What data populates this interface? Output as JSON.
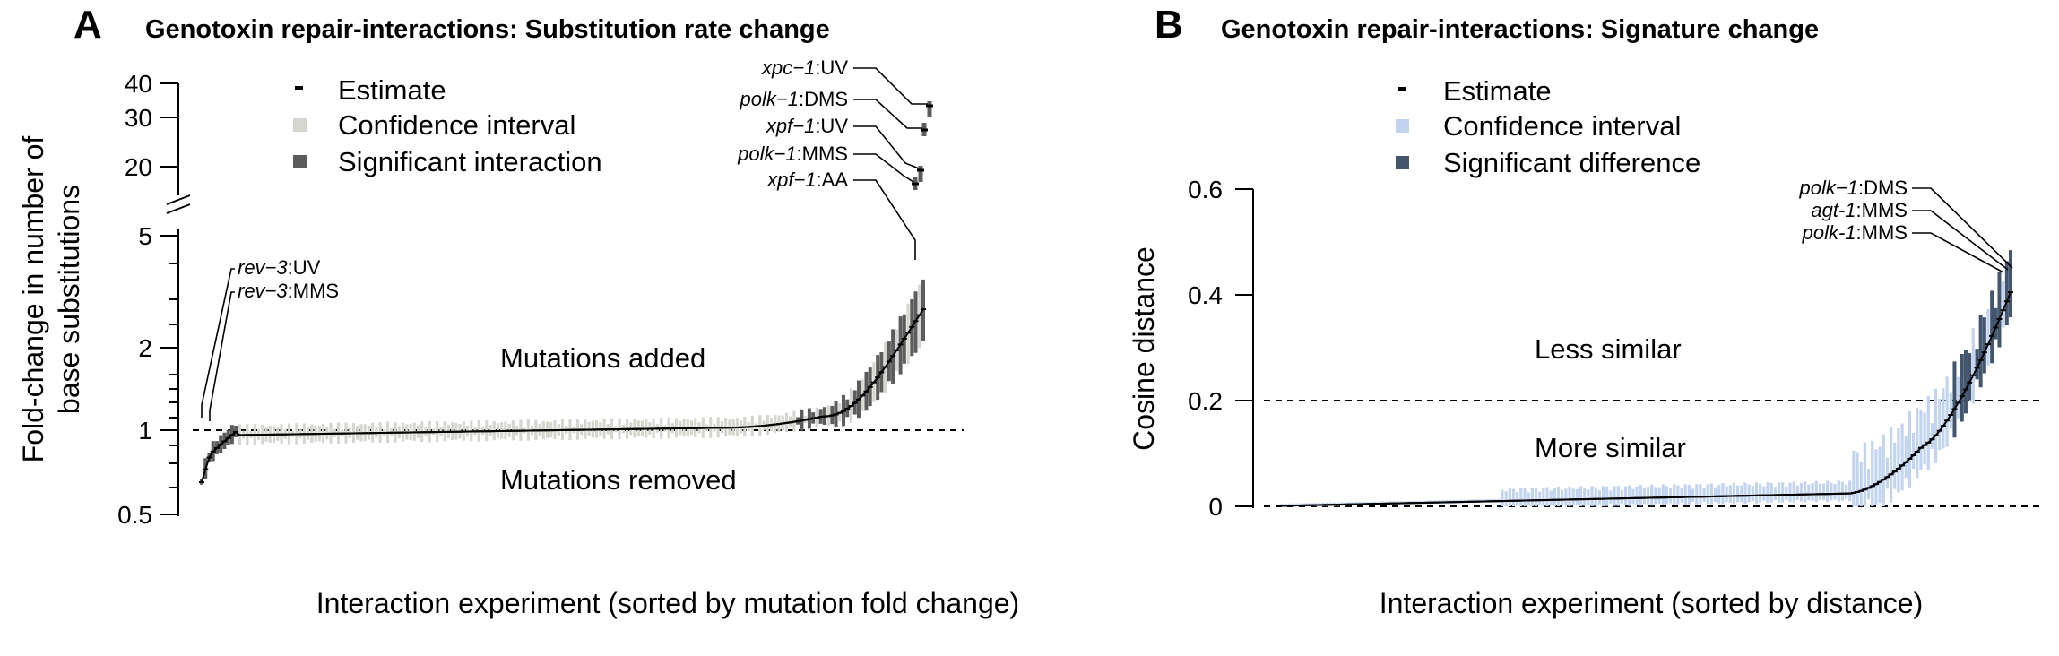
{
  "panels": {
    "a": {
      "letter": "A",
      "title": "Genotoxin repair-interactions: Substitution rate change",
      "ylabel_line1": "Fold-change in number of",
      "ylabel_line2": "base substitutions",
      "xlabel": "Interaction experiment (sorted by mutation fold change)",
      "region_above": "Mutations added",
      "region_below": "Mutations removed",
      "legend": [
        "Estimate",
        "Confidence interval",
        "Significant interaction"
      ],
      "annotations": [
        {
          "gene": "xpc−1",
          "treatment": ":UV"
        },
        {
          "gene": "polk−1",
          "treatment": ":DMS"
        },
        {
          "gene": "xpf−1",
          "treatment": ":UV"
        },
        {
          "gene": "polk−1",
          "treatment": ":MMS"
        },
        {
          "gene": "xpf−1",
          "treatment": ":AA"
        },
        {
          "gene": "rev−3",
          "treatment": ":UV"
        },
        {
          "gene": "rev−3",
          "treatment": ":MMS"
        }
      ]
    },
    "b": {
      "letter": "B",
      "title": "Genotoxin repair-interactions: Signature change",
      "ylabel": "Cosine distance",
      "xlabel": "Interaction experiment (sorted by distance)",
      "region_above": "Less similar",
      "region_below": "More similar",
      "legend": [
        "Estimate",
        "Confidence interval",
        "Significant difference"
      ],
      "annotations": [
        {
          "gene": "polk−1",
          "treatment": ":DMS"
        },
        {
          "gene": "agt-1",
          "treatment": ":MMS"
        },
        {
          "gene": "polk-1",
          "treatment": ":MMS"
        }
      ]
    }
  },
  "colors": {
    "a_ci": "#d6d6d0",
    "a_sig": "#5c5c5c",
    "b_ci": "#c2d4f0",
    "b_sig": "#44556e",
    "estimate": "#000000"
  },
  "chart_data": [
    {
      "type": "scatter",
      "panel": "A",
      "yscale": "log (broken axis)",
      "ylim_lower": [
        0.5,
        5
      ],
      "ylim_upper": [
        20,
        40
      ],
      "yticks_lower": [
        "0.5",
        "1",
        "2",
        "5"
      ],
      "yticks_upper": [
        "20",
        "30",
        "40"
      ],
      "reference_line": 1,
      "n": 196,
      "highlighted": [
        {
          "label": "rev-3:UV",
          "estimate": 0.65,
          "lo": 0.56,
          "hi": 0.78
        },
        {
          "label": "rev-3:MMS",
          "estimate": 0.84,
          "lo": 0.78,
          "hi": 0.9
        },
        {
          "label": "xpf-1:AA",
          "estimate": 17,
          "lo": 16,
          "hi": 18
        },
        {
          "label": "polk-1:MMS",
          "estimate": 19,
          "lo": 17.5,
          "hi": 21
        },
        {
          "label": "xpf-1:UV",
          "estimate": 27,
          "lo": 25.5,
          "hi": 28.5
        },
        {
          "label": "polk-1:DMS",
          "estimate": 27.5,
          "lo": 26,
          "hi": 29
        },
        {
          "label": "xpc-1:UV",
          "estimate": 33,
          "lo": 30,
          "hi": 37
        }
      ]
    },
    {
      "type": "scatter",
      "panel": "B",
      "ylim": [
        0,
        0.6
      ],
      "yticks": [
        "0",
        "0.2",
        "0.4",
        "0.6"
      ],
      "reference_lines": [
        0,
        0.2
      ],
      "n": 196,
      "highlighted": [
        {
          "label": "polk-1:MMS",
          "estimate": 0.39
        },
        {
          "label": "agt-1:MMS",
          "estimate": 0.4
        },
        {
          "label": "polk-1:DMS",
          "estimate": 0.405
        }
      ]
    }
  ]
}
